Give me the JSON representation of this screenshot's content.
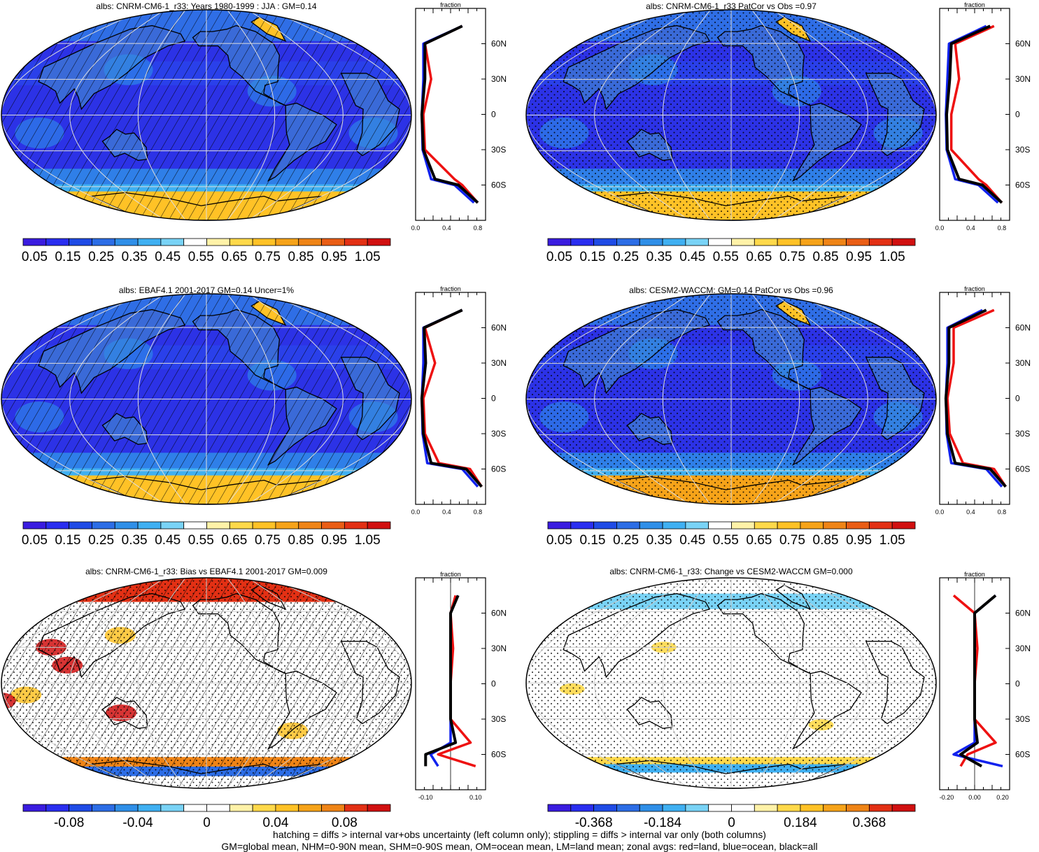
{
  "panels": [
    {
      "title": "albs: CNRM-CM6-1_r33: Years 1980-1999 : JJA : GM=0.14",
      "kind": "abs",
      "hatch": true,
      "stipple": false,
      "profile": {
        "xlabel": "fraction",
        "xticks": [
          "0.0",
          "0.4",
          "0.8"
        ],
        "xlim": [
          0,
          0.9
        ]
      },
      "cbar": {
        "labels": [
          "0.05",
          "0.15",
          "0.25",
          "0.35",
          "0.45",
          "0.55",
          "0.65",
          "0.75",
          "0.85",
          "0.95",
          "1.05"
        ]
      }
    },
    {
      "title": "albs: CNRM-CM6-1_r33 PatCor vs Obs =0.97",
      "kind": "abs",
      "hatch": false,
      "stipple": true,
      "profile": {
        "xlabel": "fraction",
        "xticks": [
          "0.0",
          "0.4",
          "0.8"
        ],
        "xlim": [
          0,
          0.9
        ]
      },
      "cbar": {
        "labels": [
          "0.05",
          "0.15",
          "0.25",
          "0.35",
          "0.45",
          "0.55",
          "0.65",
          "0.75",
          "0.85",
          "0.95",
          "1.05"
        ]
      }
    },
    {
      "title": "albs: EBAF4.1 2001-2017 GM=0.14 Uncer=1%",
      "kind": "abs",
      "hatch": true,
      "stipple": false,
      "profile": {
        "xlabel": "fraction",
        "xticks": [
          "0.0",
          "0.4",
          "0.8"
        ],
        "xlim": [
          0,
          0.9
        ]
      },
      "cbar": {
        "labels": [
          "0.05",
          "0.15",
          "0.25",
          "0.35",
          "0.45",
          "0.55",
          "0.65",
          "0.75",
          "0.85",
          "0.95",
          "1.05"
        ]
      }
    },
    {
      "title": "albs: CESM2-WACCM: GM=0.14 PatCor vs Obs =0.96",
      "kind": "abs",
      "hatch": false,
      "stipple": true,
      "profile": {
        "xlabel": "fraction",
        "xticks": [
          "0.0",
          "0.4",
          "0.8"
        ],
        "xlim": [
          0,
          0.9
        ]
      },
      "cbar": {
        "labels": [
          "0.05",
          "0.15",
          "0.25",
          "0.35",
          "0.45",
          "0.55",
          "0.65",
          "0.75",
          "0.85",
          "0.95",
          "1.05"
        ]
      }
    },
    {
      "title": "albs: CNRM-CM6-1_r33: Bias vs EBAF4.1 2001-2017 GM=0.009",
      "kind": "diff",
      "hatch": true,
      "stipple": true,
      "profile": {
        "xlabel": "fraction",
        "xticks": [
          "-0.10",
          "0.10"
        ],
        "xlim": [
          -0.14,
          0.14
        ]
      },
      "cbar": {
        "labels": [
          "-0.08",
          "-0.04",
          "0",
          "0.04",
          "0.08"
        ]
      }
    },
    {
      "title": "albs: CNRM-CM6-1_r33: Change vs CESM2-WACCM GM=0.000",
      "kind": "diff",
      "hatch": false,
      "stipple": true,
      "profile": {
        "xlabel": "fraction",
        "xticks": [
          "-0.20",
          "0.00",
          "0.20"
        ],
        "xlim": [
          -0.25,
          0.25
        ]
      },
      "cbar": {
        "labels": [
          "-0.368",
          "-0.184",
          "0",
          "0.184",
          "0.368"
        ]
      }
    }
  ],
  "lat_labels": [
    "60N",
    "30N",
    "0",
    "30S",
    "60S"
  ],
  "footer": {
    "line1": "hatching = diffs > internal var+obs uncertainty (left column only); stippling = diffs > internal var only (both columns)",
    "line2": "GM=global mean, NHM=0-90N mean, SHM=0-90S mean, OM=ocean mean, LM=land mean; zonal avgs: red=land, blue=ocean, black=all"
  },
  "chart_data": [
    {
      "type": "line",
      "title": "albs: CNRM-CM6-1_r33: Years 1980-1999 : JJA : GM=0.14",
      "xlabel": "fraction",
      "y": [
        75,
        60,
        30,
        0,
        -30,
        -55,
        -60,
        -75
      ],
      "series": [
        {
          "name": "red=land",
          "values": [
            0.6,
            0.12,
            0.2,
            0.1,
            0.12,
            0.5,
            0.6,
            0.8
          ]
        },
        {
          "name": "blue=ocean",
          "values": [
            0.6,
            0.1,
            0.1,
            0.08,
            0.09,
            0.2,
            0.5,
            0.75
          ]
        },
        {
          "name": "black=all",
          "values": [
            0.6,
            0.12,
            0.12,
            0.08,
            0.1,
            0.25,
            0.55,
            0.8
          ]
        }
      ]
    },
    {
      "type": "line",
      "title": "albs: CNRM-CM6-1_r33 PatCor vs Obs =0.97",
      "xlabel": "fraction",
      "y": [
        75,
        60,
        30,
        0,
        -30,
        -55,
        -60,
        -75
      ],
      "series": [
        {
          "name": "red=land",
          "values": [
            0.7,
            0.2,
            0.25,
            0.15,
            0.15,
            0.5,
            0.6,
            0.8
          ]
        },
        {
          "name": "blue=ocean",
          "values": [
            0.6,
            0.12,
            0.1,
            0.08,
            0.09,
            0.2,
            0.5,
            0.75
          ]
        },
        {
          "name": "black=all",
          "values": [
            0.65,
            0.15,
            0.13,
            0.09,
            0.1,
            0.25,
            0.55,
            0.8
          ]
        }
      ]
    },
    {
      "type": "line",
      "title": "albs: EBAF4.1 2001-2017 GM=0.14 Uncer=1%",
      "xlabel": "fraction",
      "y": [
        75,
        60,
        30,
        0,
        -30,
        -55,
        -60,
        -75
      ],
      "series": [
        {
          "name": "red=land",
          "values": [
            0.6,
            0.12,
            0.25,
            0.1,
            0.12,
            0.3,
            0.7,
            0.85
          ]
        },
        {
          "name": "blue=ocean",
          "values": [
            0.6,
            0.1,
            0.1,
            0.08,
            0.09,
            0.15,
            0.6,
            0.8
          ]
        },
        {
          "name": "black=all",
          "values": [
            0.6,
            0.11,
            0.13,
            0.08,
            0.1,
            0.2,
            0.65,
            0.85
          ]
        }
      ]
    },
    {
      "type": "line",
      "title": "albs: CESM2-WACCM: GM=0.14 PatCor vs Obs =0.96",
      "xlabel": "fraction",
      "y": [
        75,
        60,
        30,
        0,
        -30,
        -55,
        -60,
        -75
      ],
      "series": [
        {
          "name": "red=land",
          "values": [
            0.7,
            0.18,
            0.18,
            0.1,
            0.13,
            0.3,
            0.7,
            0.85
          ]
        },
        {
          "name": "blue=ocean",
          "values": [
            0.55,
            0.1,
            0.1,
            0.08,
            0.09,
            0.15,
            0.6,
            0.8
          ]
        },
        {
          "name": "black=all",
          "values": [
            0.6,
            0.12,
            0.12,
            0.08,
            0.1,
            0.2,
            0.65,
            0.85
          ]
        }
      ]
    },
    {
      "type": "line",
      "title": "albs: CNRM-CM6-1_r33: Bias vs EBAF4.1 2001-2017 GM=0.009",
      "xlabel": "fraction",
      "y": [
        75,
        60,
        30,
        0,
        -30,
        -50,
        -60,
        -70
      ],
      "series": [
        {
          "name": "red=land",
          "values": [
            0.02,
            0.0,
            0.01,
            0.0,
            0.0,
            0.08,
            -0.05,
            0.1
          ]
        },
        {
          "name": "blue=ocean",
          "values": [
            0.03,
            0.0,
            0.0,
            0.0,
            0.0,
            0.0,
            -0.08,
            -0.05
          ]
        },
        {
          "name": "black=all",
          "values": [
            0.03,
            0.0,
            0.0,
            0.0,
            0.0,
            0.02,
            -0.1,
            -0.1
          ]
        }
      ]
    },
    {
      "type": "line",
      "title": "albs: CNRM-CM6-1_r33: Change vs CESM2-WACCM GM=0.000",
      "xlabel": "fraction",
      "y": [
        75,
        60,
        30,
        0,
        -30,
        -50,
        -60,
        -70
      ],
      "series": [
        {
          "name": "red=land",
          "values": [
            -0.15,
            0.0,
            0.02,
            0.0,
            0.0,
            0.15,
            -0.05,
            -0.1
          ]
        },
        {
          "name": "blue=ocean",
          "values": [
            0.15,
            0.0,
            0.0,
            0.0,
            0.0,
            0.0,
            -0.15,
            0.2
          ]
        },
        {
          "name": "black=all",
          "values": [
            0.15,
            0.0,
            0.0,
            0.0,
            0.0,
            0.02,
            -0.1,
            0.05
          ]
        }
      ]
    }
  ]
}
